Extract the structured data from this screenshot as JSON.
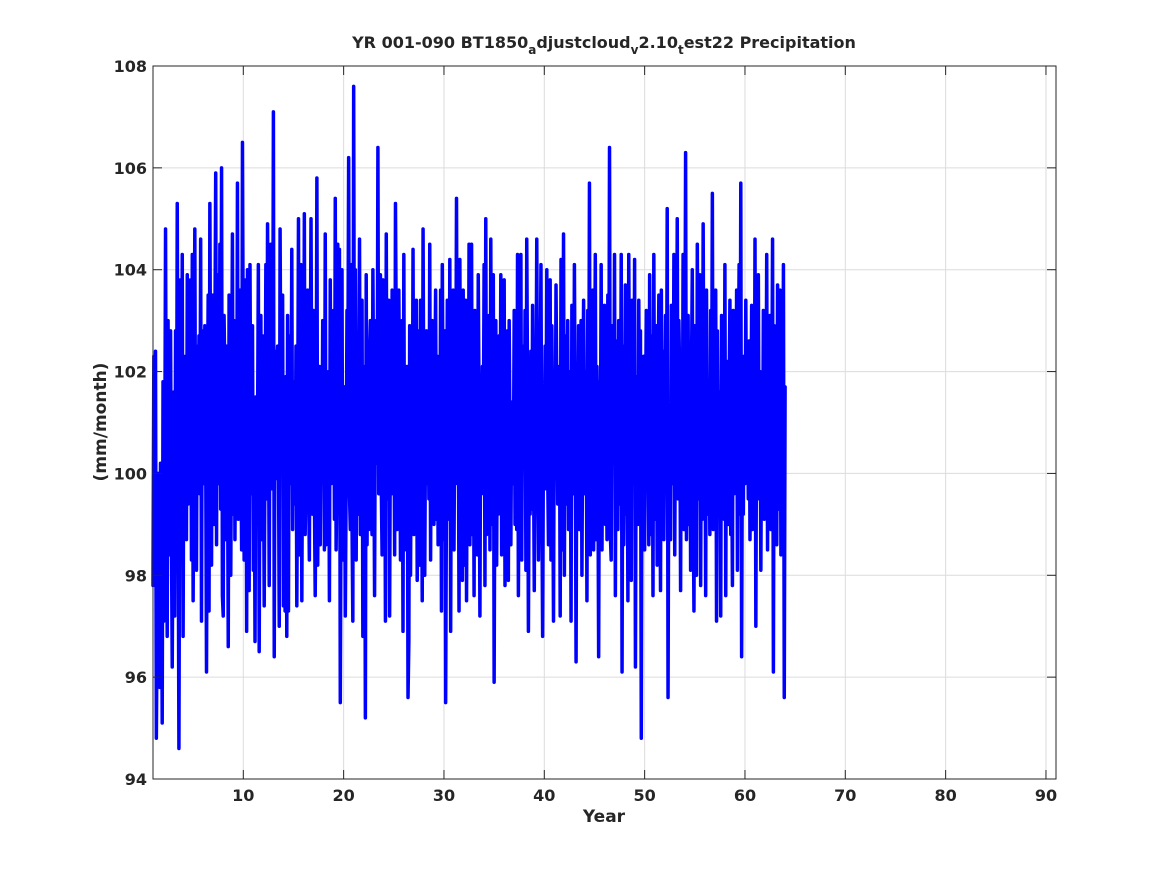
{
  "chart_data": {
    "type": "line",
    "title": {
      "parts": [
        {
          "text": "YR 001-090 BT1850",
          "shift": "none"
        },
        {
          "text": "a",
          "shift": "sub"
        },
        {
          "text": "djustcloud",
          "shift": "none"
        },
        {
          "text": "v",
          "shift": "sub"
        },
        {
          "text": "2.10",
          "shift": "none"
        },
        {
          "text": "t",
          "shift": "sub"
        },
        {
          "text": "est22 Precipitation",
          "shift": "none"
        }
      ]
    },
    "xlabel": "Year",
    "ylabel": "(mm/month)",
    "xlim": [
      1,
      91
    ],
    "ylim": [
      94,
      108
    ],
    "xticks": [
      10,
      20,
      30,
      40,
      50,
      60,
      70,
      80,
      90
    ],
    "yticks": [
      94,
      96,
      98,
      100,
      102,
      104,
      106,
      108
    ],
    "grid": true,
    "x_start": 1,
    "x_step": 0.0833333,
    "series": [
      {
        "color": "#0000ff",
        "values": [
          97.8,
          102.3,
          100.4,
          102.4,
          94.8,
          97.2,
          100.0,
          98.4,
          95.8,
          100.2,
          99.8,
          95.1,
          101.8,
          97.1,
          99.6,
          104.8,
          99.3,
          96.8,
          103.0,
          98.4,
          101.9,
          102.8,
          98.9,
          96.2,
          99.5,
          101.6,
          97.2,
          102.8,
          98.6,
          105.3,
          99.9,
          94.6,
          100.6,
          103.8,
          99.7,
          104.3,
          96.8,
          101.9,
          100.4,
          102.3,
          98.7,
          103.9,
          99.4,
          100.1,
          101.2,
          103.8,
          98.3,
          104.3,
          97.5,
          101.1,
          104.8,
          99.6,
          98.1,
          102.5,
          100.4,
          102.7,
          99.6,
          104.6,
          97.1,
          102.8,
          101.5,
          99.8,
          102.9,
          100.7,
          96.1,
          101.2,
          103.5,
          97.3,
          105.3,
          101.0,
          98.2,
          103.5,
          100.7,
          99.0,
          102.6,
          105.9,
          98.6,
          103.9,
          101.4,
          99.8,
          104.5,
          99.3,
          106.0,
          97.6,
          97.2,
          103.1,
          101.8,
          98.7,
          102.5,
          100.9,
          96.6,
          103.5,
          101.1,
          98.0,
          101.4,
          104.7,
          99.2,
          103.0,
          98.7,
          101.9,
          99.5,
          105.7,
          99.1,
          101.3,
          103.6,
          100.6,
          98.5,
          106.5,
          102.0,
          98.3,
          99.6,
          103.8,
          96.9,
          104.0,
          101.5,
          97.7,
          104.1,
          100.2,
          99.6,
          102.9,
          98.1,
          101.4,
          96.7,
          101.5,
          99.8,
          100.7,
          104.1,
          96.5,
          101.2,
          103.1,
          98.7,
          102.7,
          100.9,
          97.4,
          100.6,
          104.1,
          99.5,
          104.9,
          101.7,
          97.8,
          101.9,
          104.5,
          99.7,
          100.1,
          107.1,
          96.4,
          101.9,
          102.4,
          99.9,
          102.5,
          100.7,
          97.0,
          104.8,
          101.1,
          100.9,
          103.5,
          97.4,
          99.7,
          97.3,
          101.9,
          96.8,
          103.1,
          97.3,
          102.7,
          99.8,
          100.2,
          104.4,
          98.9,
          101.8,
          100.7,
          99.4,
          102.5,
          97.4,
          100.8,
          105.0,
          98.4,
          100.8,
          104.1,
          97.5,
          101.5,
          99.6,
          105.1,
          98.8,
          100.2,
          100.6,
          103.6,
          100.1,
          98.3,
          102.0,
          105.0,
          100.7,
          99.2,
          103.2,
          99.6,
          97.6,
          100.0,
          105.8,
          98.2,
          100.9,
          102.1,
          98.6,
          101.4,
          99.9,
          103.0,
          102.0,
          98.5,
          104.7,
          98.6,
          101.1,
          100.1,
          102.0,
          97.5,
          103.8,
          99.8,
          101.7,
          100.4,
          103.2,
          99.1,
          105.4,
          98.5,
          100.3,
          104.5,
          99.3,
          104.4,
          95.5,
          99.9,
          104.0,
          98.3,
          100.9,
          101.7,
          97.2,
          99.8,
          103.2,
          101.6,
          106.2,
          99.6,
          98.9,
          104.1,
          99.1,
          97.1,
          107.6,
          99.5,
          104.0,
          98.3,
          102.2,
          99.2,
          101.5,
          104.6,
          98.8,
          102.8,
          103.4,
          96.8,
          100.6,
          102.1,
          95.2,
          103.9,
          98.6,
          101.6,
          98.9,
          102.3,
          103.0,
          99.3,
          98.8,
          104.0,
          101.1,
          97.6,
          102.1,
          103.0,
          100.2,
          106.4,
          99.6,
          101.2,
          103.9,
          99.8,
          98.4,
          103.8,
          99.0,
          102.2,
          97.1,
          104.7,
          99.5,
          101.2,
          103.4,
          97.2,
          101.4,
          100.4,
          103.6,
          99.6,
          101.9,
          98.4,
          105.3,
          102.5,
          98.9,
          100.0,
          103.6,
          101.2,
          98.3,
          99.9,
          103.0,
          96.9,
          104.3,
          98.5,
          102.1,
          99.3,
          102.1,
          95.6,
          96.7,
          102.9,
          98.0,
          101.2,
          99.5,
          104.4,
          98.8,
          102.2,
          100.5,
          103.4,
          97.9,
          99.8,
          102.8,
          98.2,
          103.4,
          101.0,
          97.5,
          104.8,
          100.7,
          98.0,
          101.2,
          102.8,
          99.8,
          101.8,
          99.5,
          104.5,
          98.3,
          102.0,
          103.0,
          100.3,
          99.0,
          101.5,
          103.6,
          99.1,
          102.3,
          98.6,
          101.9,
          100.1,
          103.6,
          97.3,
          104.1,
          101.0,
          98.7,
          102.8,
          95.5,
          99.7,
          103.4,
          101.0,
          99.1,
          104.2,
          96.9,
          102.0,
          99.6,
          103.6,
          98.5,
          101.6,
          100.7,
          105.4,
          99.8,
          101.9,
          97.3,
          104.2,
          100.4,
          102.8,
          97.9,
          103.6,
          98.2,
          100.6,
          103.4,
          97.5,
          101.8,
          99.7,
          104.5,
          98.6,
          101.4,
          104.5,
          98.8,
          102.1,
          97.6,
          103.2,
          99.9,
          102.9,
          98.4,
          103.9,
          101.3,
          97.2,
          101.9,
          99.6,
          102.1,
          100.3,
          104.1,
          97.8,
          105.0,
          98.8,
          101.5,
          100.0,
          103.1,
          98.5,
          104.6,
          99.0,
          101.7,
          103.9,
          95.9,
          100.9,
          103.0,
          98.2,
          101.6,
          99.2,
          102.7,
          100.2,
          103.9,
          98.4,
          101.8,
          99.8,
          103.8,
          97.8,
          101.6,
          99.5,
          102.8,
          97.9,
          103.0,
          100.5,
          98.6,
          101.4,
          100.2,
          99.8,
          103.2,
          99.0,
          102.7,
          98.9,
          104.3,
          97.6,
          101.0,
          99.4,
          104.3,
          98.3,
          102.5,
          101.0,
          100.1,
          103.2,
          98.1,
          104.6,
          101.6,
          96.9,
          100.7,
          99.2,
          102.4,
          99.3,
          103.3,
          100.6,
          97.7,
          102.1,
          101.2,
          104.6,
          100.3,
          98.3,
          100.6,
          101.5,
          104.1,
          99.6,
          96.8,
          100.8,
          100.0,
          102.5,
          99.7,
          104.0,
          100.1,
          98.6,
          101.5,
          103.8,
          98.3,
          102.9,
          100.6,
          97.1,
          102.0,
          99.9,
          103.7,
          101.5,
          99.4,
          100.3,
          102.1,
          97.2,
          104.2,
          98.5,
          100.0,
          104.7,
          98.0,
          102.7,
          99.4,
          100.6,
          103.0,
          98.9,
          101.0,
          102.0,
          97.1,
          103.3,
          101.1,
          99.6,
          104.1,
          100.8,
          96.3,
          101.7,
          99.7,
          102.9,
          98.9,
          100.5,
          103.0,
          98.0,
          101.3,
          103.4,
          100.9,
          99.6,
          102.0,
          97.5,
          103.2,
          99.6,
          105.7,
          98.4,
          101.9,
          99.8,
          103.6,
          98.5,
          100.9,
          104.3,
          98.7,
          102.1,
          100.6,
          96.4,
          101.8,
          99.9,
          104.1,
          98.5,
          102.2,
          100.8,
          103.3,
          99.0,
          101.3,
          98.7,
          103.5,
          99.8,
          106.4,
          98.8,
          98.3,
          102.9,
          101.2,
          100.2,
          104.3,
          97.6,
          102.6,
          100.9,
          98.9,
          103.0,
          100.1,
          99.4,
          104.3,
          96.1,
          102.5,
          98.6,
          100.7,
          103.7,
          99.2,
          101.6,
          97.5,
          104.3,
          100.9,
          102.2,
          97.9,
          103.4,
          100.0,
          99.8,
          104.2,
          96.2,
          101.9,
          100.5,
          99.0,
          103.4,
          100.0,
          102.8,
          94.8,
          101.7,
          99.1,
          102.3,
          98.5,
          100.8,
          103.2,
          99.9,
          102.0,
          98.6,
          103.9,
          100.7,
          98.8,
          102.7,
          97.6,
          104.3,
          100.1,
          99.1,
          102.9,
          98.2,
          101.5,
          103.5,
          100.5,
          97.7,
          103.6,
          99.2,
          102.4,
          98.7,
          101.0,
          103.1,
          99.8,
          105.2,
          95.6,
          101.2,
          100.4,
          98.7,
          103.3,
          101.6,
          99.8,
          104.3,
          98.4,
          102.0,
          100.1,
          105.0,
          99.5,
          103.0,
          101.7,
          97.7,
          102.4,
          99.3,
          104.3,
          98.9,
          101.2,
          106.3,
          98.7,
          100.6,
          103.1,
          99.0,
          102.3,
          98.1,
          101.9,
          104.0,
          99.6,
          97.3,
          102.9,
          100.1,
          98.0,
          104.5,
          101.0,
          99.5,
          103.9,
          97.8,
          102.2,
          99.1,
          104.9,
          100.3,
          102.2,
          97.6,
          103.6,
          100.1,
          99.2,
          101.8,
          98.8,
          103.2,
          100.6,
          105.5,
          98.9,
          102.1,
          99.9,
          103.6,
          97.1,
          102.8,
          100.4,
          99.3,
          101.6,
          97.2,
          103.1,
          100.5,
          102.5,
          99.1,
          104.1,
          97.6,
          102.2,
          100.7,
          99.0,
          101.5,
          103.4,
          98.8,
          100.7,
          97.8,
          103.2,
          99.6,
          102.5,
          100.0,
          103.6,
          98.1,
          101.8,
          104.1,
          99.2,
          105.7,
          96.4,
          101.4,
          99.2,
          102.3,
          99.8,
          103.4,
          100.1,
          101.6,
          99.5,
          102.6,
          98.7,
          101.0,
          103.3,
          98.9,
          101.6,
          99.5,
          104.6,
          97.0,
          101.9,
          100.1,
          103.9,
          99.5,
          102.0,
          98.1,
          101.5,
          99.5,
          103.2,
          99.1,
          102.6,
          100.0,
          104.3,
          98.5,
          102.4,
          99.6,
          103.1,
          98.9,
          101.1,
          104.6,
          96.1,
          102.9,
          99.4,
          101.8,
          98.6,
          103.7,
          100.7,
          99.3,
          103.6,
          98.4,
          101.4,
          99.8,
          104.1,
          95.6,
          101.7
        ]
      }
    ]
  }
}
